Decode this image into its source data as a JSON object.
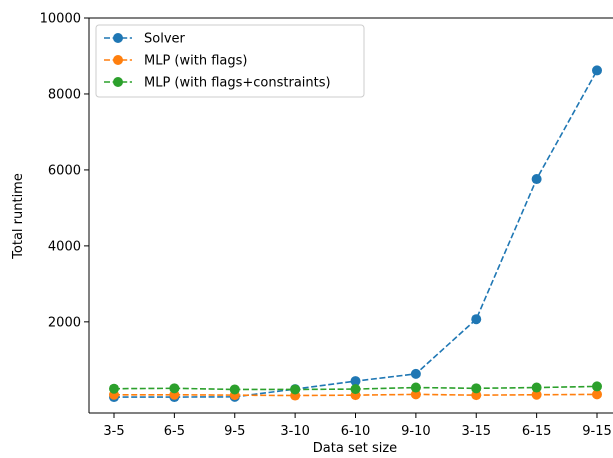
{
  "chart_data": {
    "type": "line",
    "title": "",
    "xlabel": "Data set size",
    "ylabel": "Total runtime",
    "categories": [
      "3-5",
      "6-5",
      "9-5",
      "3-10",
      "6-10",
      "9-10",
      "3-15",
      "6-15",
      "9-15"
    ],
    "ylim": [
      -400,
      10000
    ],
    "yticks": [
      2000,
      4000,
      6000,
      8000,
      10000
    ],
    "grid": false,
    "legend_position": "top-left",
    "series": [
      {
        "name": "Solver",
        "color": "#1f77b4",
        "linestyle": "dashed",
        "marker": "circle",
        "values": [
          20,
          20,
          25,
          230,
          440,
          630,
          2070,
          5760,
          8620
        ]
      },
      {
        "name": "MLP (with flags)",
        "color": "#ff7f0e",
        "linestyle": "dashed",
        "marker": "circle",
        "values": [
          80,
          80,
          70,
          60,
          70,
          90,
          70,
          80,
          90
        ]
      },
      {
        "name": "MLP (with flags+constraints)",
        "color": "#2ca02c",
        "linestyle": "dashed",
        "marker": "circle",
        "values": [
          240,
          250,
          220,
          220,
          230,
          270,
          250,
          270,
          300
        ]
      }
    ]
  }
}
